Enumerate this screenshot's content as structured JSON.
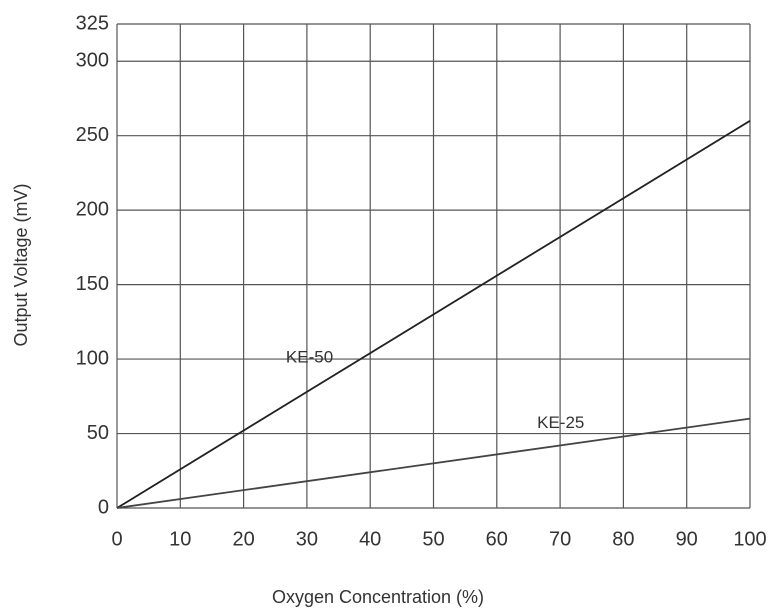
{
  "chart_data": {
    "type": "line",
    "x_label": "Oxygen Concentration (%)",
    "y_label": "Output Voltage (mV)",
    "x": [
      0,
      100
    ],
    "series": [
      {
        "name": "KE-50",
        "color": "#222222",
        "values": [
          0,
          260
        ]
      },
      {
        "name": "KE-25",
        "color": "#444444",
        "values": [
          0,
          60
        ]
      }
    ],
    "xlim": [
      0,
      100
    ],
    "xticks": [
      0,
      10,
      20,
      30,
      40,
      50,
      60,
      70,
      80,
      90,
      100
    ],
    "ylim": [
      0,
      325
    ],
    "yticks": [
      0,
      50,
      100,
      150,
      200,
      250,
      300,
      325
    ],
    "grid": true
  }
}
